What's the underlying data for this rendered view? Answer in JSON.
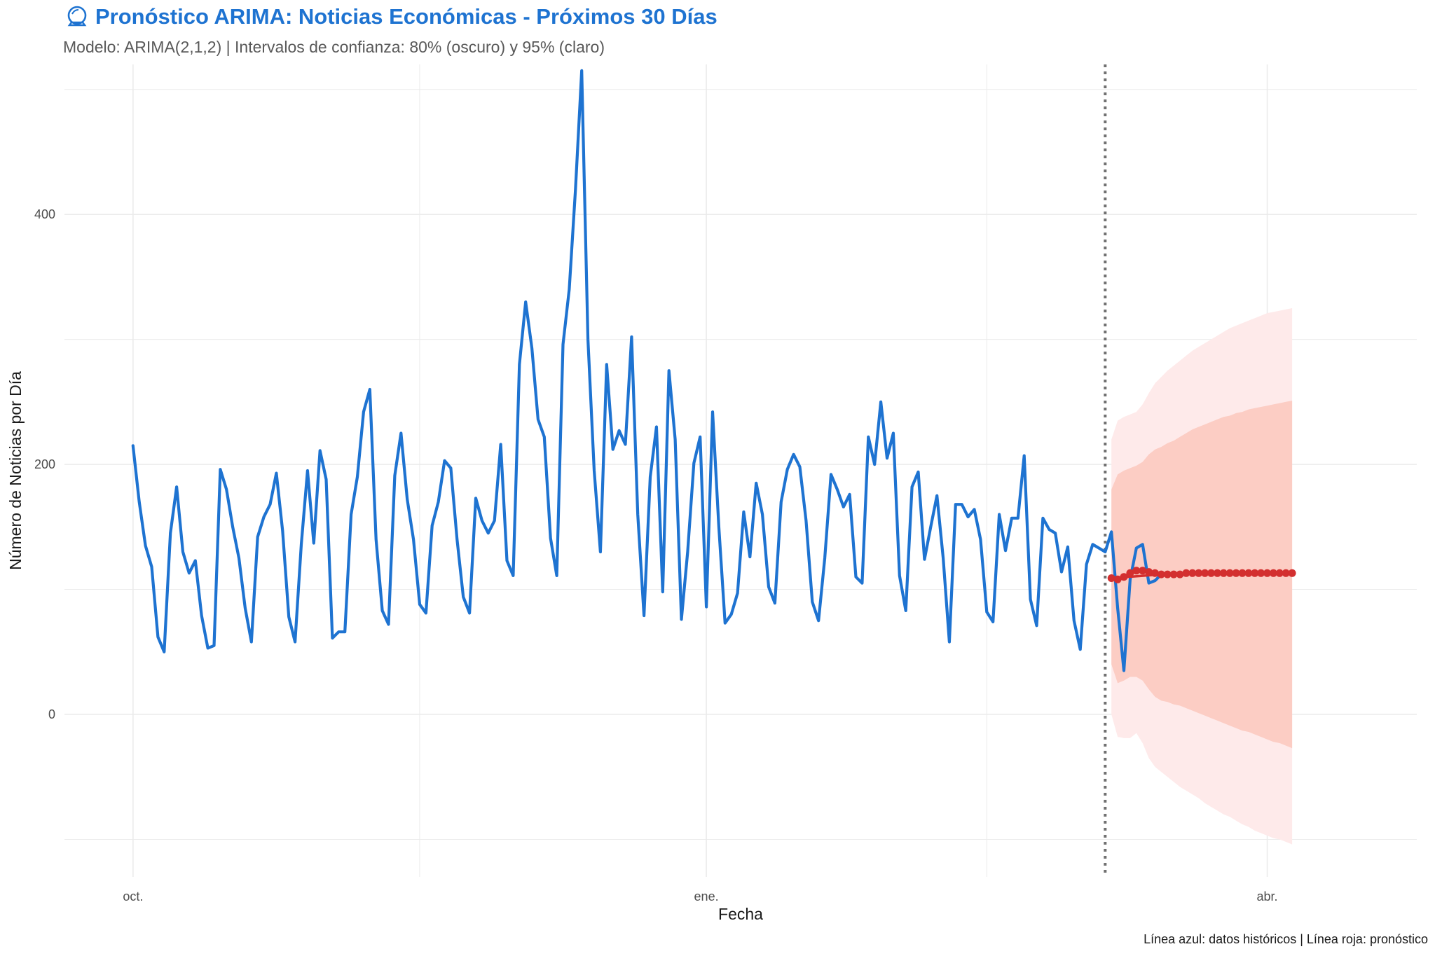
{
  "header": {
    "icon": "crystal-ball-icon",
    "title": "Pronóstico ARIMA: Noticias Económicas - Próximos 30 Días",
    "subtitle": "Modelo: ARIMA(2,1,2) | Intervalos de confianza: 80% (oscuro) y 95% (claro)"
  },
  "caption": "Línea azul: datos históricos | Línea roja: pronóstico",
  "colors": {
    "historical": "#1E73D1",
    "forecast": "#D32F2F",
    "ci80": "#FCCDC4",
    "ci95": "#FEEAEA",
    "grid": "#EBEBEB",
    "vline": "#707070",
    "title": "#1E73D1"
  },
  "chart_data": {
    "type": "line",
    "title": "Pronóstico ARIMA: Noticias Económicas - Próximos 30 Días",
    "subtitle": "Modelo: ARIMA(2,1,2) | Intervalos de confianza: 80% (oscuro) y 95% (claro)",
    "xlabel": "Fecha",
    "ylabel": "Número de Noticias por Día",
    "xlim": [
      "2024-09-20",
      "2025-04-25"
    ],
    "ylim": [
      -130,
      520
    ],
    "x_ticks": [
      {
        "date": "2024-10-01",
        "label": "oct."
      },
      {
        "date": "2025-01-01",
        "label": "ene."
      },
      {
        "date": "2025-04-01",
        "label": "abr."
      }
    ],
    "y_ticks": [
      0,
      200,
      400
    ],
    "grid": true,
    "forecast_start": "2025-03-06",
    "series": [
      {
        "name": "Línea azul: datos históricos",
        "start": "2024-10-01",
        "frequency": "daily",
        "values": [
          215,
          170,
          135,
          118,
          62,
          50,
          145,
          182,
          130,
          113,
          123,
          79,
          53,
          55,
          196,
          180,
          150,
          125,
          85,
          58,
          142,
          158,
          168,
          193,
          147,
          78,
          58,
          136,
          195,
          137,
          211,
          188,
          61,
          66,
          66,
          160,
          190,
          242,
          260,
          140,
          83,
          72,
          191,
          225,
          172,
          140,
          88,
          81,
          151,
          170,
          203,
          197,
          140,
          94,
          81,
          173,
          155,
          145,
          155,
          216,
          123,
          111,
          280,
          330,
          293,
          236,
          222,
          141,
          111,
          296,
          340,
          420,
          515,
          300,
          195,
          130,
          280,
          212,
          227,
          216,
          302,
          160,
          79,
          190,
          230,
          98,
          275,
          220,
          76,
          130,
          201,
          222,
          86,
          242,
          150,
          73,
          80,
          97,
          162,
          126,
          185,
          160,
          102,
          89,
          170,
          196,
          208,
          198,
          155,
          90,
          75,
          125,
          192,
          180,
          166,
          176,
          110,
          105,
          222,
          200,
          250,
          205,
          225,
          111,
          83,
          182,
          194,
          124,
          150,
          175,
          125,
          58,
          168,
          168,
          158,
          164,
          140,
          82,
          74,
          160,
          131,
          157,
          157,
          207,
          92,
          71,
          157,
          148,
          145,
          114,
          134,
          75,
          52,
          120,
          136,
          133,
          130,
          146,
          85,
          35,
          108,
          133,
          136,
          105,
          107,
          112
        ]
      },
      {
        "name": "Línea roja: pronóstico",
        "start": "2025-03-07",
        "frequency": "daily",
        "values": [
          109,
          108,
          110,
          113,
          115,
          115,
          114,
          113,
          112,
          112,
          112,
          112,
          113,
          113,
          113,
          113,
          113,
          113,
          113,
          113,
          113,
          113,
          113,
          113,
          113,
          113,
          113,
          113,
          113,
          113
        ],
        "lo80": [
          40,
          25,
          27,
          30,
          30,
          27,
          20,
          14,
          11,
          10,
          8,
          7,
          5,
          3,
          1,
          -1,
          -3,
          -5,
          -7,
          -9,
          -11,
          -13,
          -14,
          -16,
          -18,
          -20,
          -22,
          -23,
          -25,
          -27
        ],
        "hi80": [
          180,
          192,
          195,
          197,
          199,
          202,
          208,
          212,
          214,
          217,
          219,
          222,
          225,
          228,
          230,
          232,
          234,
          236,
          238,
          239,
          241,
          242,
          244,
          245,
          246,
          247,
          248,
          249,
          250,
          251
        ],
        "lo95": [
          0,
          -18,
          -19,
          -19,
          -15,
          -23,
          -35,
          -42,
          -46,
          -50,
          -54,
          -58,
          -61,
          -64,
          -67,
          -71,
          -74,
          -77,
          -80,
          -82,
          -85,
          -88,
          -90,
          -93,
          -95,
          -97,
          -99,
          -100,
          -102,
          -104
        ],
        "hi95": [
          220,
          235,
          238,
          240,
          242,
          248,
          257,
          265,
          270,
          275,
          279,
          283,
          287,
          291,
          294,
          297,
          300,
          303,
          306,
          309,
          311,
          313,
          315,
          317,
          319,
          321,
          322,
          323,
          324,
          325
        ]
      }
    ]
  }
}
